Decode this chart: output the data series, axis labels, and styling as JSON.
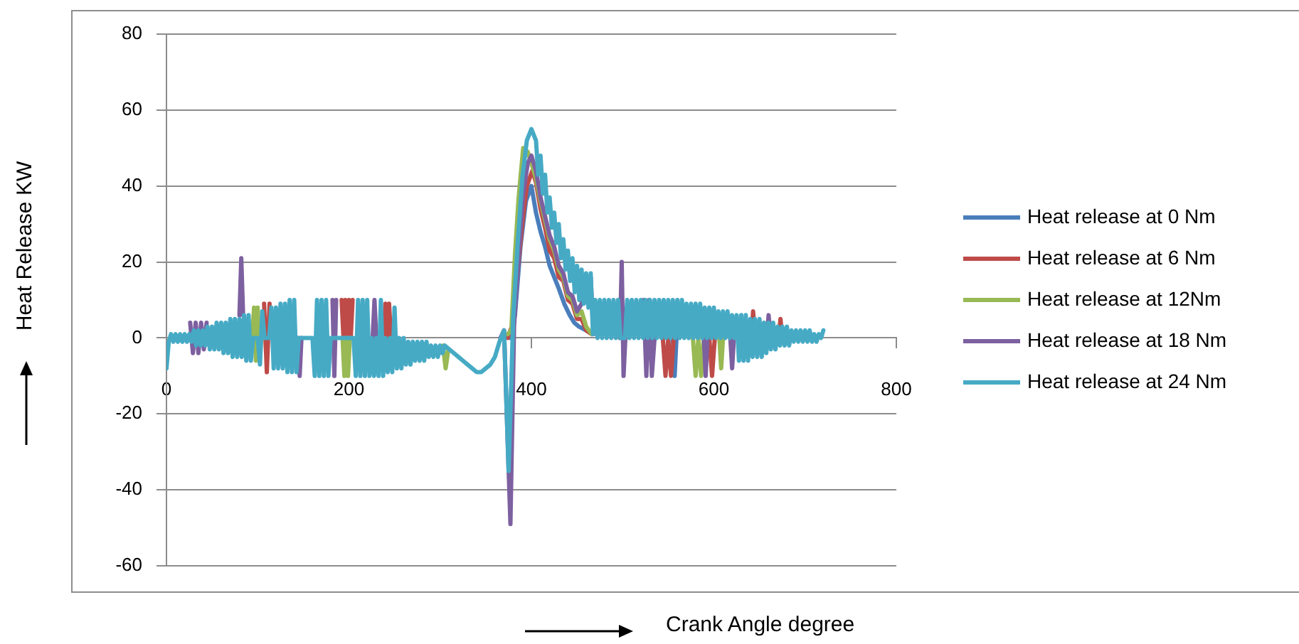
{
  "chart_data": {
    "type": "line",
    "xlabel": "Crank Angle degree",
    "ylabel": "Heat Release KW",
    "xlim": [
      0,
      800
    ],
    "xticks": [
      0,
      200,
      400,
      600,
      800
    ],
    "ylim": [
      -60,
      80
    ],
    "yticks": [
      -60,
      -40,
      -20,
      0,
      20,
      40,
      60,
      80
    ],
    "grid": "y",
    "legend": "right",
    "series": [
      {
        "name": "Heat release at 0 Nm",
        "color": "#4a7ebb",
        "x": [
          376,
          382,
          388,
          394,
          400,
          405,
          410,
          415,
          420,
          425,
          430,
          436,
          442,
          447,
          452,
          460,
          467,
          470,
          555,
          557,
          559
        ],
        "values": [
          0,
          6,
          24,
          36,
          40,
          33,
          28,
          24,
          19,
          16,
          13,
          9,
          6,
          4,
          3,
          2,
          1,
          null,
          0,
          -10,
          0
        ]
      },
      {
        "name": "Heat release at 6 Nm",
        "color": "#be4b48",
        "x": [
          107,
          110,
          113,
          116,
          192,
          194,
          196,
          198,
          200,
          202,
          204,
          206,
          238,
          240,
          242,
          244,
          246,
          248,
          374,
          380,
          385,
          390,
          395,
          401,
          405,
          410,
          415,
          420,
          425,
          430,
          435,
          440,
          445,
          450,
          455,
          460,
          466,
          470,
          544,
          547,
          550,
          553,
          556,
          560,
          595,
          598,
          601,
          604,
          641,
          643,
          645,
          648,
          671,
          673,
          675
        ],
        "values": [
          9,
          -9,
          9,
          null,
          10,
          0,
          10,
          0,
          10,
          0,
          10,
          null,
          0,
          9,
          0,
          9,
          0,
          null,
          0,
          4,
          18,
          30,
          40,
          44,
          41,
          34,
          29,
          23,
          21,
          16,
          15,
          10,
          9,
          5,
          5,
          2,
          1,
          null,
          0,
          -10,
          0,
          -10,
          0,
          null,
          0,
          -10,
          0,
          null,
          0,
          7,
          0,
          null,
          0,
          5,
          0
        ]
      },
      {
        "name": "Heat release at 12Nm",
        "color": "#98b954",
        "x": [
          94,
          96,
          98,
          100,
          102,
          104,
          106,
          193,
          195,
          197,
          199,
          201,
          203,
          303,
          306,
          309,
          312,
          374,
          378,
          382,
          386,
          391,
          396,
          400,
          405,
          410,
          415,
          420,
          425,
          430,
          435,
          440,
          445,
          450,
          455,
          460,
          466,
          470,
          577,
          580,
          583,
          586,
          589,
          592,
          606,
          608,
          610
        ],
        "values": [
          0,
          8,
          -6,
          8,
          -6,
          0,
          null,
          0,
          -10,
          0,
          -10,
          0,
          null,
          -2,
          -8,
          -3,
          null,
          1,
          2,
          22,
          37,
          50,
          49,
          46,
          42,
          36,
          31,
          26,
          23,
          18,
          16,
          11,
          10,
          6,
          7,
          3,
          1,
          null,
          0,
          -10,
          0,
          -10,
          0,
          null,
          0,
          -8,
          0
        ]
      },
      {
        "name": "Heat release at 18 Nm",
        "color": "#7d60a0",
        "x": [
          26,
          29,
          32,
          35,
          38,
          41,
          44,
          46,
          80,
          82,
          84,
          86,
          144,
          146,
          148,
          150,
          182,
          184,
          186,
          190,
          226,
          228,
          230,
          232,
          366,
          370,
          377,
          381,
          386,
          391,
          396,
          400,
          405,
          410,
          415,
          420,
          425,
          430,
          435,
          440,
          445,
          450,
          455,
          460,
          465,
          468,
          472,
          497,
          499,
          501,
          503,
          506,
          523,
          526,
          529,
          532,
          535,
          538,
          589,
          591,
          593,
          596,
          618,
          620,
          622,
          625,
          658,
          660,
          662
        ],
        "values": [
          4,
          -4,
          4,
          -4,
          4,
          -3,
          4,
          null,
          6,
          21,
          6,
          null,
          0,
          -10,
          0,
          null,
          10,
          -10,
          10,
          null,
          0,
          10,
          0,
          null,
          0,
          2,
          -49,
          3,
          22,
          38,
          46,
          48,
          44,
          37,
          32,
          27,
          24,
          19,
          17,
          12,
          11,
          7,
          9,
          15,
          16,
          1,
          null,
          0,
          20,
          -10,
          0,
          null,
          10,
          -10,
          10,
          -10,
          0,
          null,
          0,
          -10,
          0,
          null,
          0,
          -8,
          0,
          null,
          0,
          6,
          0
        ]
      },
      {
        "name": "Heat release at 24 Nm",
        "color": "#46aac5",
        "x": [
          0,
          2.5,
          5,
          7.5,
          10,
          12.5,
          15,
          17.5,
          20,
          22.5,
          25,
          27.5,
          30,
          32.5,
          35,
          37.5,
          40,
          42.5,
          45,
          47.5,
          50,
          52.5,
          55,
          57.5,
          60,
          62.5,
          65,
          67.5,
          70,
          72.5,
          75,
          77.5,
          80,
          82.5,
          85,
          87.5,
          90,
          92.5,
          95,
          97.5,
          100,
          102.5,
          105,
          107.5,
          110,
          112.5,
          115,
          117.5,
          120,
          122.5,
          125,
          127.5,
          130,
          132.5,
          135,
          137.5,
          140,
          142.5,
          145,
          147.5,
          150,
          152.5,
          155,
          157.5,
          160,
          162.5,
          165,
          167.5,
          170,
          172.5,
          175,
          177.5,
          180,
          182.5,
          185,
          187.5,
          190,
          192.5,
          195,
          197.5,
          200,
          202.5,
          205,
          207.5,
          210,
          212.5,
          215,
          217.5,
          220,
          222.5,
          225,
          227.5,
          230,
          232.5,
          235,
          237.5,
          240,
          242.5,
          245,
          247.5,
          250,
          252.5,
          255,
          257.5,
          260,
          262.5,
          265,
          267.5,
          270,
          272.5,
          275,
          277.5,
          280,
          282.5,
          285,
          287.5,
          290,
          292.5,
          295,
          297.5,
          300,
          302.5,
          305,
          310,
          315,
          320,
          325,
          330,
          335,
          340,
          345,
          350,
          355,
          360,
          365,
          370,
          375,
          380,
          385,
          390,
          395,
          400,
          405,
          407.5,
          410,
          412.5,
          415,
          417.5,
          420,
          422.5,
          425,
          427.5,
          430,
          432.5,
          435,
          437.5,
          440,
          442.5,
          445,
          447.5,
          450,
          452.5,
          455,
          457.5,
          460,
          462.5,
          465,
          467.5,
          470,
          472.5,
          475,
          477.5,
          480,
          482.5,
          485,
          487.5,
          490,
          492.5,
          495,
          497.5,
          500,
          502.5,
          505,
          507.5,
          510,
          512.5,
          515,
          517.5,
          520,
          522.5,
          525,
          527.5,
          530,
          532.5,
          535,
          537.5,
          540,
          542.5,
          545,
          547.5,
          550,
          552.5,
          555,
          557.5,
          560,
          562.5,
          565,
          567.5,
          570,
          572.5,
          575,
          577.5,
          580,
          582.5,
          585,
          587.5,
          590,
          592.5,
          595,
          597.5,
          600,
          602.5,
          605,
          607.5,
          610,
          612.5,
          615,
          617.5,
          620,
          622.5,
          625,
          627.5,
          630,
          632.5,
          635,
          637.5,
          640,
          642.5,
          645,
          647.5,
          650,
          652.5,
          655,
          657.5,
          660,
          662.5,
          665,
          667.5,
          670,
          672.5,
          675,
          677.5,
          680,
          682.5,
          685,
          687.5,
          690,
          692.5,
          695,
          697.5,
          700,
          702.5,
          705,
          707.5,
          710,
          712.5,
          715,
          717.5,
          720
        ],
        "values": [
          -8,
          -1,
          1,
          -1,
          1,
          -1,
          1,
          -1,
          1,
          -1,
          1,
          -1,
          2,
          -2,
          2,
          -2,
          2,
          -2,
          3,
          -3,
          3,
          -3,
          4,
          -3,
          4,
          -4,
          4,
          -4,
          5,
          -5,
          5,
          -5,
          5,
          -5,
          6,
          -6,
          6,
          -6,
          0,
          0,
          0,
          -7,
          7,
          0,
          0,
          0,
          8,
          -8,
          8,
          -8,
          9,
          -8,
          9,
          -9,
          10,
          -9,
          10,
          -9,
          0,
          0,
          0,
          0,
          0,
          0,
          0,
          -10,
          10,
          -10,
          10,
          -10,
          10,
          -10,
          0,
          0,
          0,
          0,
          0,
          0,
          0,
          0,
          0,
          0,
          0,
          -10,
          10,
          -10,
          10,
          -10,
          10,
          -10,
          0,
          -10,
          0,
          -10,
          10,
          -10,
          0,
          -9,
          0,
          -9,
          8,
          -8,
          0,
          -8,
          0,
          -7,
          -1,
          -7,
          -1,
          -6,
          -1,
          -6,
          -1,
          -6,
          -1,
          -5,
          -2,
          -5,
          -2,
          -5,
          -2,
          -4,
          -2,
          -3,
          -4,
          -5,
          -6,
          -7,
          -8,
          -9,
          -9,
          -8,
          -7,
          -5,
          -1,
          2,
          -35,
          5,
          25,
          42,
          52,
          55,
          52,
          43,
          48,
          38,
          43,
          33,
          37,
          29,
          33,
          25,
          30,
          21,
          26,
          18,
          23,
          15,
          21,
          12,
          19,
          10,
          18,
          9,
          17,
          8,
          17,
          1,
          10,
          0,
          10,
          0,
          10,
          0,
          10,
          0,
          10,
          0,
          10,
          0,
          0,
          0,
          10,
          0,
          10,
          0,
          10,
          0,
          10,
          0,
          10,
          0,
          10,
          0,
          10,
          0,
          10,
          0,
          10,
          0,
          10,
          0,
          10,
          0,
          10,
          0,
          10,
          0,
          9,
          0,
          9,
          0,
          9,
          0,
          9,
          0,
          8,
          0,
          8,
          0,
          8,
          0,
          7,
          0,
          7,
          0,
          7,
          0,
          6,
          0,
          6,
          -6,
          6,
          -6,
          6,
          -6,
          5,
          -5,
          5,
          -5,
          5,
          -5,
          4,
          -4,
          4,
          -3,
          4,
          -3,
          3,
          -2,
          3,
          -2,
          3,
          -2,
          2,
          -1,
          2,
          -1,
          2,
          -1,
          2,
          -1,
          2,
          -1,
          1,
          -1,
          1,
          0,
          2
        ]
      }
    ]
  }
}
